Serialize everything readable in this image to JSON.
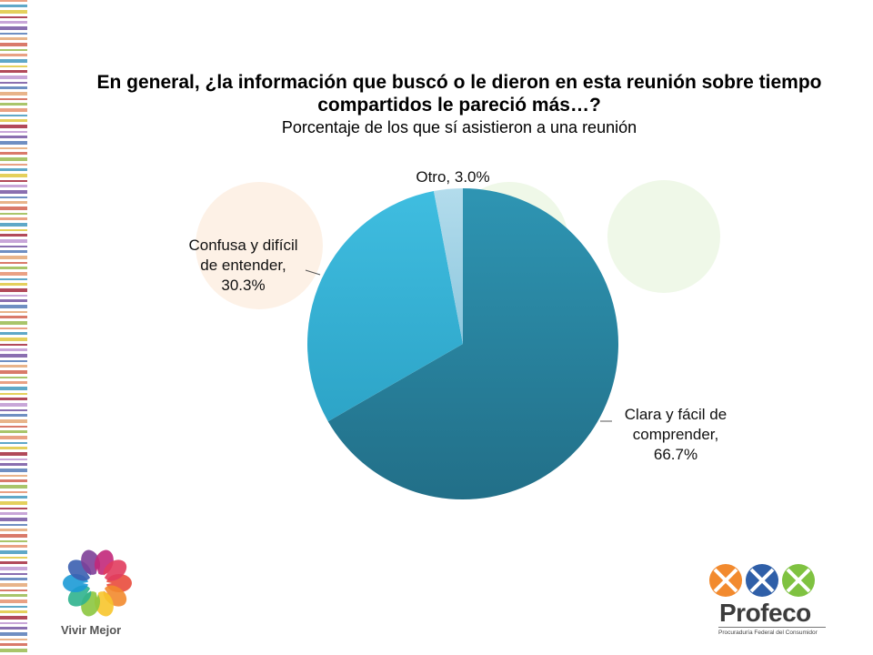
{
  "slide": {
    "title": "En general, ¿la información que buscó o le dieron en esta reunión sobre tiempo compartidos le pareció más…?",
    "subtitle": "Porcentaje de los que sí asistieron a una reunión"
  },
  "chart_data": {
    "type": "pie",
    "title": "En general, ¿la información que buscó o le dieron en esta reunión sobre tiempo compartidos le pareció más…?",
    "subtitle": "Porcentaje de los que sí asistieron a una reunión",
    "categories": [
      "Clara y fácil de comprender",
      "Confusa y difícil de entender",
      "Otro"
    ],
    "values": [
      66.7,
      30.3,
      3.0
    ],
    "colors": [
      "#2a8aa6",
      "#38b2d6",
      "#9fd3e6"
    ],
    "data_labels": [
      [
        "Clara y fácil de",
        "comprender,",
        "66.7%"
      ],
      [
        "Confusa y difícil",
        "de entender,",
        "30.3%"
      ],
      [
        "Otro, 3.0%"
      ]
    ],
    "start_angle_deg": 0,
    "direction": "clockwise"
  },
  "logos": {
    "left_caption": "Vivir Mejor",
    "right_name": "Profeco",
    "right_subtitle": "Procuraduría Federal del Consumidor"
  },
  "decor": {
    "stripe_colors": [
      "#e9a184",
      "#b24a5a",
      "#6f8fc2",
      "#a9c56a",
      "#e4d05c",
      "#8a6fb0",
      "#d97a6a",
      "#5fa8c8",
      "#c8a6d8",
      "#e8b48a"
    ]
  }
}
